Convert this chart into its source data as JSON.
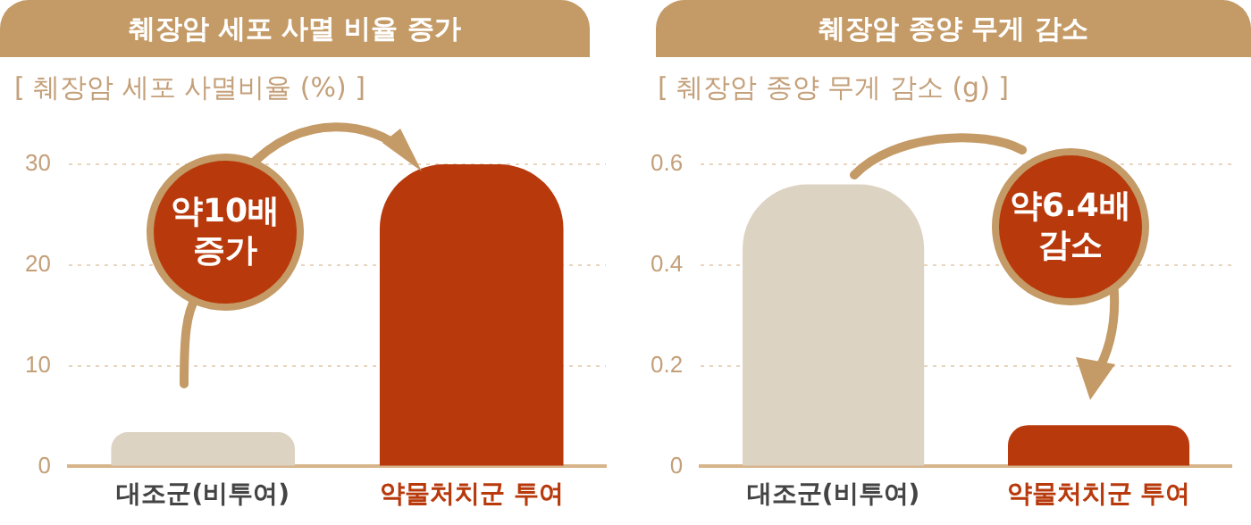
{
  "chart_data": [
    {
      "type": "bar",
      "title": "췌장암 세포 사멸 비율 증가",
      "ylabel": "[ 췌장암 세포 사멸비율 (%) ]",
      "categories": [
        "대조군(비투여)",
        "약물처치군 투여"
      ],
      "values": [
        3.4,
        30
      ],
      "colors": [
        "#ddd3c3",
        "#b83a0c"
      ],
      "ylim": [
        0,
        30
      ],
      "yticks": [
        0,
        10,
        20,
        30
      ],
      "grid": "y",
      "annotations": [
        "약10배 증가"
      ]
    },
    {
      "type": "bar",
      "title": "췌장암 종양 무게 감소",
      "ylabel": "[ 췌장암 종양 무게 감소 (g) ]",
      "categories": [
        "대조군(비투여)",
        "약물처치군 투여"
      ],
      "values": [
        0.56,
        0.082
      ],
      "colors": [
        "#ddd3c3",
        "#b83a0c"
      ],
      "ylim": [
        0,
        0.6
      ],
      "yticks": [
        0,
        0.2,
        0.4,
        0.6
      ],
      "grid": "y",
      "annotations": [
        "약6.4배 감소"
      ]
    }
  ]
}
